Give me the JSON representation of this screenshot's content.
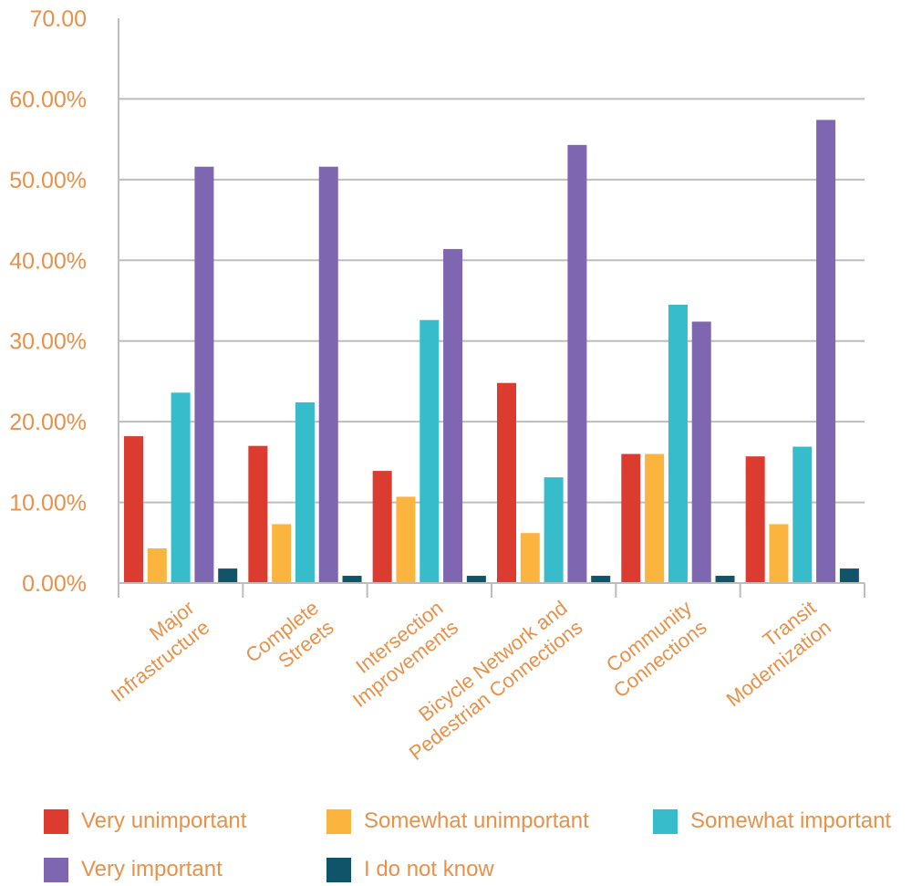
{
  "chart_data": {
    "type": "bar",
    "categories": [
      [
        "Major",
        "Infrastructure"
      ],
      [
        "Complete",
        "Streets"
      ],
      [
        "Intersection",
        "Improvements"
      ],
      [
        "Bicycle Network and",
        "Pedestrian Connections"
      ],
      [
        "Community",
        "Connections"
      ],
      [
        "Transit",
        "Modernization"
      ]
    ],
    "series": [
      {
        "name": "Very unimportant",
        "color": "#dc3b30",
        "values": [
          18.2,
          17.0,
          13.9,
          24.8,
          16.0,
          15.7
        ]
      },
      {
        "name": "Somewhat unimportant",
        "color": "#fbb53f",
        "values": [
          4.3,
          7.3,
          10.7,
          6.2,
          16.0,
          7.3
        ]
      },
      {
        "name": "Somewhat important",
        "color": "#36bccb",
        "values": [
          23.6,
          22.4,
          32.6,
          13.1,
          34.5,
          16.9
        ]
      },
      {
        "name": "Very important",
        "color": "#7e66b1",
        "values": [
          51.6,
          51.6,
          41.4,
          54.3,
          32.4,
          57.4
        ]
      },
      {
        "name": "I do not know",
        "color": "#0f5468",
        "values": [
          1.8,
          0.9,
          0.9,
          0.9,
          0.9,
          1.8
        ]
      }
    ],
    "ylim": [
      0,
      70
    ],
    "yticks": [
      "0.00%",
      "10.00%",
      "20.00%",
      "30.00%",
      "40.00%",
      "50.00%",
      "60.00%",
      "70.00"
    ],
    "grid": true,
    "legend_position": "bottom"
  }
}
